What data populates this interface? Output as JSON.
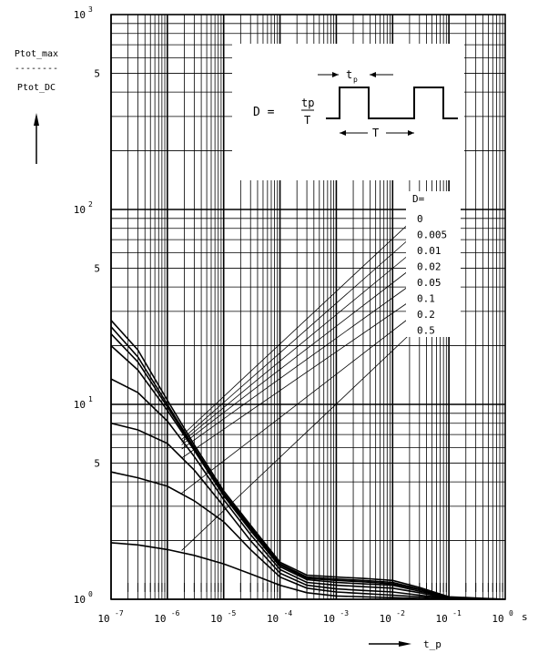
{
  "chart_data": {
    "type": "line",
    "title": "",
    "ylabel": {
      "numerator": "Ptot_max",
      "separator": "--------",
      "denominator": "Ptot_DC"
    },
    "xlabel": "t_p",
    "x_unit": "s",
    "x_scale": "log",
    "y_scale": "log",
    "xlim": [
      1e-07,
      1
    ],
    "ylim": [
      1,
      1000
    ],
    "grid": true,
    "x_ticks": [
      {
        "value": 1e-07,
        "base": "10",
        "exp": "-7"
      },
      {
        "value": 1e-06,
        "base": "10",
        "exp": "-6"
      },
      {
        "value": 1e-05,
        "base": "10",
        "exp": "-5"
      },
      {
        "value": 0.0001,
        "base": "10",
        "exp": "-4"
      },
      {
        "value": 0.001,
        "base": "10",
        "exp": "-3"
      },
      {
        "value": 0.01,
        "base": "10",
        "exp": "-2"
      },
      {
        "value": 0.1,
        "base": "10",
        "exp": "-1"
      },
      {
        "value": 1,
        "base": "10",
        "exp": "0"
      }
    ],
    "y_ticks": [
      {
        "value": 1,
        "base": "10",
        "exp": "0",
        "label": ""
      },
      {
        "value": 5,
        "base": "",
        "exp": "",
        "label": "5"
      },
      {
        "value": 10,
        "base": "10",
        "exp": "1",
        "label": ""
      },
      {
        "value": 50,
        "base": "",
        "exp": "",
        "label": "5"
      },
      {
        "value": 100,
        "base": "10",
        "exp": "2",
        "label": ""
      },
      {
        "value": 500,
        "base": "",
        "exp": "",
        "label": "5"
      },
      {
        "value": 1000,
        "base": "10",
        "exp": "3",
        "label": ""
      }
    ],
    "legend_title": "D=",
    "legend_placement": "right",
    "inset": {
      "formula_lhs": "D =",
      "formula_num": "tp",
      "formula_den": "T",
      "tp_label": "t",
      "tp_sub": "p",
      "T_label": "T"
    },
    "series": [
      {
        "name": "0",
        "x": [
          1e-07,
          3e-07,
          1e-06,
          3e-06,
          1e-05,
          3e-05,
          0.0001,
          0.0003,
          0.001,
          0.003,
          0.01,
          0.03,
          0.1,
          1
        ],
        "y": [
          27,
          19,
          10.5,
          6.2,
          3.6,
          2.4,
          1.55,
          1.33,
          1.3,
          1.28,
          1.25,
          1.15,
          1.03,
          1.0
        ]
      },
      {
        "name": "0.005",
        "x": [
          1e-07,
          3e-07,
          1e-06,
          3e-06,
          1e-05,
          3e-05,
          0.0001,
          0.0003,
          0.001,
          0.003,
          0.01,
          0.03,
          0.1,
          1
        ],
        "y": [
          25,
          17.5,
          10,
          6.0,
          3.5,
          2.35,
          1.52,
          1.3,
          1.27,
          1.25,
          1.22,
          1.13,
          1.02,
          1.0
        ]
      },
      {
        "name": "0.01",
        "x": [
          1e-07,
          3e-07,
          1e-06,
          3e-06,
          1e-05,
          3e-05,
          0.0001,
          0.0003,
          0.001,
          0.003,
          0.01,
          0.03,
          0.1,
          1
        ],
        "y": [
          23,
          16.5,
          9.7,
          5.9,
          3.45,
          2.3,
          1.5,
          1.28,
          1.25,
          1.23,
          1.2,
          1.12,
          1.02,
          1.0
        ]
      },
      {
        "name": "0.02",
        "x": [
          1e-07,
          3e-07,
          1e-06,
          3e-06,
          1e-05,
          3e-05,
          0.0001,
          0.0003,
          0.001,
          0.003,
          0.01,
          0.03,
          0.1,
          1
        ],
        "y": [
          20,
          15,
          9.3,
          5.8,
          3.4,
          2.25,
          1.47,
          1.26,
          1.22,
          1.2,
          1.18,
          1.1,
          1.02,
          1.0
        ]
      },
      {
        "name": "0.05",
        "x": [
          1e-07,
          3e-07,
          1e-06,
          3e-06,
          1e-05,
          3e-05,
          0.0001,
          0.0003,
          0.001,
          0.003,
          0.01,
          0.03,
          0.1,
          1
        ],
        "y": [
          13.5,
          11.5,
          8.2,
          5.4,
          3.25,
          2.15,
          1.42,
          1.22,
          1.18,
          1.16,
          1.14,
          1.08,
          1.01,
          1.0
        ]
      },
      {
        "name": "0.1",
        "x": [
          1e-07,
          3e-07,
          1e-06,
          3e-06,
          1e-05,
          3e-05,
          0.0001,
          0.0003,
          0.001,
          0.003,
          0.01,
          0.03,
          0.1,
          1
        ],
        "y": [
          8,
          7.4,
          6.3,
          4.6,
          3.0,
          2.0,
          1.36,
          1.18,
          1.13,
          1.11,
          1.09,
          1.05,
          1.01,
          1.0
        ]
      },
      {
        "name": "0.2",
        "x": [
          1e-07,
          3e-07,
          1e-06,
          3e-06,
          1e-05,
          3e-05,
          0.0001,
          0.0003,
          0.001,
          0.003,
          0.01,
          0.03,
          0.1,
          1
        ],
        "y": [
          4.5,
          4.2,
          3.8,
          3.2,
          2.5,
          1.8,
          1.3,
          1.14,
          1.09,
          1.07,
          1.05,
          1.03,
          1.01,
          1.0
        ]
      },
      {
        "name": "0.5",
        "x": [
          1e-07,
          3e-07,
          1e-06,
          3e-06,
          1e-05,
          3e-05,
          0.0001,
          0.0003,
          0.001,
          0.003,
          0.01,
          0.03,
          0.1,
          1
        ],
        "y": [
          1.95,
          1.9,
          1.8,
          1.68,
          1.52,
          1.35,
          1.18,
          1.08,
          1.04,
          1.03,
          1.02,
          1.01,
          1.0,
          1.0
        ]
      }
    ],
    "annotations": [
      {
        "series": "0",
        "from_x": 1.8e-06,
        "from_y": 6.9
      },
      {
        "series": "0.005",
        "from_x": 1.8e-06,
        "from_y": 6.6
      },
      {
        "series": "0.01",
        "from_x": 1.8e-06,
        "from_y": 6.4
      },
      {
        "series": "0.02",
        "from_x": 1.8e-06,
        "from_y": 6.2
      },
      {
        "series": "0.05",
        "from_x": 1.8e-06,
        "from_y": 5.9
      },
      {
        "series": "0.1",
        "from_x": 1.8e-06,
        "from_y": 5.3
      },
      {
        "series": "0.2",
        "from_x": 1.8e-06,
        "from_y": 3.5
      },
      {
        "series": "0.5",
        "from_x": 1.8e-06,
        "from_y": 1.78
      }
    ]
  }
}
